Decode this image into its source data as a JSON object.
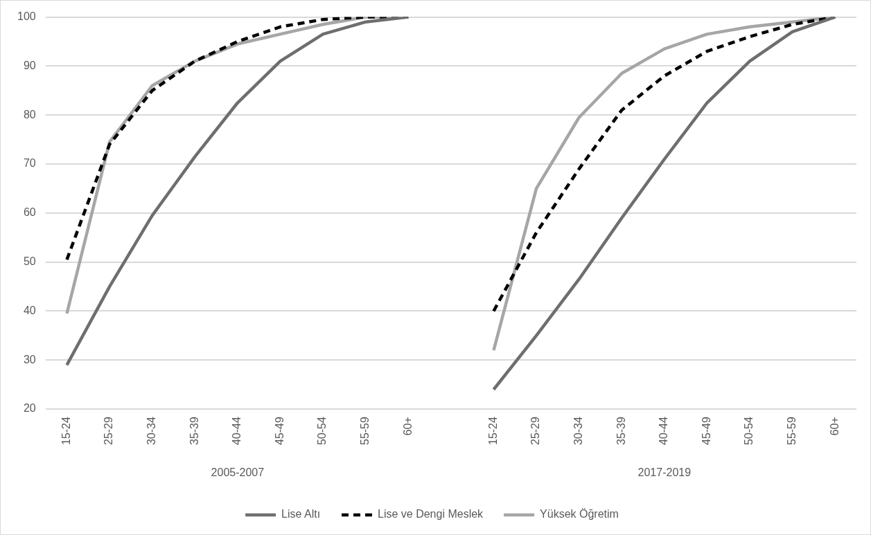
{
  "chart_data": {
    "type": "line",
    "categories": [
      "15-24",
      "25-29",
      "30-34",
      "35-39",
      "40-44",
      "45-49",
      "50-54",
      "55-59",
      "60+",
      null,
      "15-24",
      "25-29",
      "30-34",
      "35-39",
      "40-44",
      "45-49",
      "50-54",
      "55-59",
      "60+"
    ],
    "series": [
      {
        "name": "Lise Altı",
        "color": "#6e6e6e",
        "line_style": "solid",
        "values": [
          29,
          45,
          59.5,
          71.5,
          82.5,
          91,
          96.5,
          99,
          100,
          null,
          24,
          35,
          46.5,
          59,
          71,
          82.5,
          91,
          97,
          100
        ]
      },
      {
        "name": "Lise ve Dengi Meslek",
        "color": "#000000",
        "line_style": "dashed",
        "values": [
          50.5,
          74,
          85,
          91,
          95,
          98,
          99.5,
          100,
          100,
          null,
          40,
          56,
          69,
          81,
          88,
          93,
          96,
          98.5,
          100
        ]
      },
      {
        "name": "Yüksek Öğretim",
        "color": "#a6a6a6",
        "line_style": "solid",
        "values": [
          39.5,
          74.5,
          86,
          91,
          94.5,
          96.5,
          98.5,
          100,
          100,
          null,
          32,
          65,
          79.5,
          88.5,
          93.5,
          96.5,
          98,
          99,
          100
        ]
      }
    ],
    "annotations": [
      "2005-2007",
      "2017-2019"
    ],
    "ylim": [
      20,
      100
    ],
    "yticks": [
      20,
      30,
      40,
      50,
      60,
      70,
      80,
      90,
      100
    ],
    "grid": "y",
    "legend": "bottom",
    "marker": "none"
  }
}
